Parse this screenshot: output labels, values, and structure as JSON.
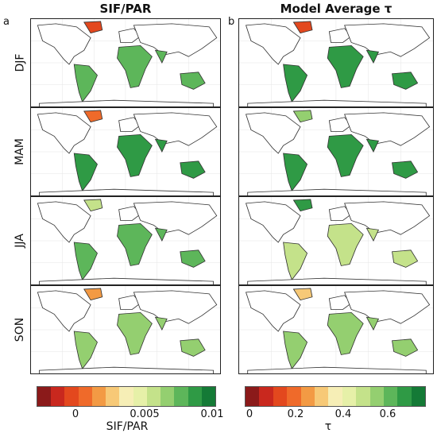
{
  "columns": [
    {
      "letter": "a",
      "title": "SIF/PAR"
    },
    {
      "letter": "b",
      "title": "Model Average τ"
    }
  ],
  "seasons": [
    "DJF",
    "MAM",
    "JJA",
    "SON"
  ],
  "colorbars": [
    {
      "label": "SIF/PAR",
      "ticks": [
        "0",
        "0.005",
        "0.01"
      ],
      "colors": [
        "#8b1a1a",
        "#c9281e",
        "#e3481e",
        "#ef6a2a",
        "#f39a44",
        "#f7c977",
        "#f6eeb6",
        "#e6f0a8",
        "#c4e28a",
        "#94cf70",
        "#5db65a",
        "#2f9a45",
        "#147a36"
      ]
    },
    {
      "label": "τ",
      "ticks": [
        "0",
        "0.2",
        "0.4",
        "0.6"
      ],
      "colors": [
        "#8b1a1a",
        "#c9281e",
        "#e3481e",
        "#ef6a2a",
        "#f39a44",
        "#f7c977",
        "#f6eeb6",
        "#e6f0a8",
        "#c4e28a",
        "#94cf70",
        "#5db65a",
        "#2f9a45",
        "#147a36"
      ]
    }
  ]
}
